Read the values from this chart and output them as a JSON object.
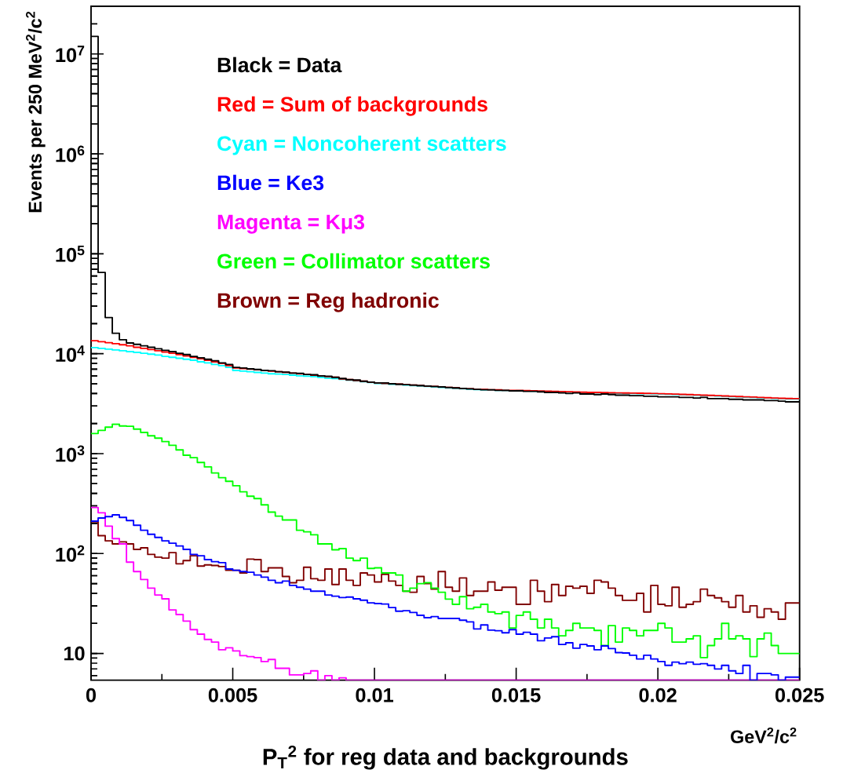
{
  "chart_data": {
    "type": "histogram",
    "title": "P$_{T}$$^{2}$ for reg data and backgrounds",
    "xlabel": "GeV$^{2}$/c$^{2}$",
    "ylabel": "Events per 250 MeV$^{2}$/c$^{2}$",
    "log": "y",
    "legend": "top",
    "xlim": [
      0,
      0.025
    ],
    "ylim": [
      5.4,
      30000000
    ],
    "xticks": [
      0,
      {
        "value": 0.0025,
        "label": null
      },
      0.005,
      {
        "value": 0.0075,
        "label": null
      },
      0.01,
      {
        "value": 0.0125,
        "label": null
      },
      0.015,
      {
        "value": 0.0175,
        "label": null
      },
      0.02,
      {
        "value": 0.0225,
        "label": null
      },
      0.025
    ],
    "yticks": [
      10,
      {
        "value": 100,
        "label": "10$^{2}$"
      },
      {
        "value": 1000,
        "label": "10$^{3}$"
      },
      {
        "value": 10000,
        "label": "10$^{4}$"
      },
      {
        "value": 100000,
        "label": "10$^{5}$"
      },
      {
        "value": 1000000,
        "label": "10$^{6}$"
      },
      {
        "value": 10000000,
        "label": "10$^{7}$"
      },
      {
        "value": 6,
        "label": null
      },
      {
        "value": 7,
        "label": null
      },
      {
        "value": 8,
        "label": null
      },
      {
        "value": 9,
        "label": null
      },
      {
        "value": 20,
        "label": null
      },
      {
        "value": 30,
        "label": null
      },
      {
        "value": 40,
        "label": null
      },
      {
        "value": 50,
        "label": null
      },
      {
        "value": 60,
        "label": null
      },
      {
        "value": 70,
        "label": null
      },
      {
        "value": 80,
        "label": null
      },
      {
        "value": 90,
        "label": null
      },
      {
        "value": 200,
        "label": null
      },
      {
        "value": 300,
        "label": null
      },
      {
        "value": 400,
        "label": null
      },
      {
        "value": 500,
        "label": null
      },
      {
        "value": 600,
        "label": null
      },
      {
        "value": 700,
        "label": null
      },
      {
        "value": 800,
        "label": null
      },
      {
        "value": 900,
        "label": null
      },
      {
        "value": 2000,
        "label": null
      },
      {
        "value": 3000,
        "label": null
      },
      {
        "value": 4000,
        "label": null
      },
      {
        "value": 5000,
        "label": null
      },
      {
        "value": 6000,
        "label": null
      },
      {
        "value": 7000,
        "label": null
      },
      {
        "value": 8000,
        "label": null
      },
      {
        "value": 9000,
        "label": null
      },
      {
        "value": 20000,
        "label": null
      },
      {
        "value": 30000,
        "label": null
      },
      {
        "value": 40000,
        "label": null
      },
      {
        "value": 50000,
        "label": null
      },
      {
        "value": 60000,
        "label": null
      },
      {
        "value": 70000,
        "label": null
      },
      {
        "value": 80000,
        "label": null
      },
      {
        "value": 90000,
        "label": null
      },
      {
        "value": 200000,
        "label": null
      },
      {
        "value": 300000,
        "label": null
      },
      {
        "value": 400000,
        "label": null
      },
      {
        "value": 500000,
        "label": null
      },
      {
        "value": 600000,
        "label": null
      },
      {
        "value": 700000,
        "label": null
      },
      {
        "value": 800000,
        "label": null
      },
      {
        "value": 900000,
        "label": null
      },
      {
        "value": 2000000,
        "label": null
      },
      {
        "value": 3000000,
        "label": null
      },
      {
        "value": 4000000,
        "label": null
      },
      {
        "value": 5000000,
        "label": null
      },
      {
        "value": 6000000,
        "label": null
      },
      {
        "value": 7000000,
        "label": null
      },
      {
        "value": 8000000,
        "label": null
      },
      {
        "value": 9000000,
        "label": null
      },
      {
        "value": 20000000,
        "label": null
      }
    ],
    "bins": [
      0,
      0.00025,
      0.0005,
      0.00075,
      0.001,
      0.00125,
      0.0015,
      0.00175,
      0.002,
      0.00225,
      0.0025,
      0.00275,
      0.003,
      0.00325,
      0.0035,
      0.00375,
      0.004,
      0.00425,
      0.0045,
      0.00475,
      0.005,
      0.00525,
      0.0055,
      0.00575,
      0.006,
      0.00625,
      0.0065,
      0.00675,
      0.007,
      0.00725,
      0.0075,
      0.00775,
      0.008,
      0.00825,
      0.0085,
      0.00875,
      0.009,
      0.00925,
      0.0095,
      0.00975,
      0.01,
      0.01025,
      0.0105,
      0.01075,
      0.011,
      0.01125,
      0.0115,
      0.01175,
      0.012,
      0.01225,
      0.0125,
      0.01275,
      0.013,
      0.01325,
      0.0135,
      0.01375,
      0.014,
      0.01425,
      0.0145,
      0.01475,
      0.015,
      0.01525,
      0.0155,
      0.01575,
      0.016,
      0.01625,
      0.0165,
      0.01675,
      0.017,
      0.01725,
      0.0175,
      0.01775,
      0.018,
      0.01825,
      0.0185,
      0.01875,
      0.019,
      0.01925,
      0.0195,
      0.01975,
      0.02,
      0.02025,
      0.0205,
      0.02075,
      0.021,
      0.02125,
      0.0215,
      0.02175,
      0.022,
      0.02225,
      0.0225,
      0.02275,
      0.023,
      0.02325,
      0.0235,
      0.02375,
      0.024,
      0.02425,
      0.0245,
      0.02475,
      0.025
    ],
    "series": [
      {
        "name": "Brown = Reg hadronic",
        "color": "#800000",
        "values": [
          208,
          151,
          134,
          125,
          131,
          125,
          110,
          114,
          98,
          92,
          90,
          102,
          79,
          85,
          95,
          75,
          77,
          76,
          74,
          68,
          68,
          64,
          88,
          87,
          66,
          72,
          72,
          59,
          51,
          54,
          73,
          56,
          54,
          70,
          49,
          70,
          54,
          48,
          64,
          61,
          52,
          62,
          53,
          48,
          42,
          41,
          59,
          50,
          44,
          66,
          46,
          42,
          57,
          38,
          42,
          42,
          52,
          43,
          46,
          46,
          31,
          31,
          54,
          42,
          33,
          49,
          38,
          47,
          45,
          47,
          40,
          54,
          52,
          45,
          38,
          34,
          34,
          40,
          26,
          48,
          31,
          30,
          46,
          29,
          31,
          33,
          44,
          38,
          36,
          33,
          29,
          38,
          26,
          30,
          23,
          28,
          26,
          22,
          32,
          32
        ]
      },
      {
        "name": "Green = Collimator scatters",
        "color": "#00ff00",
        "values": [
          1590,
          1710,
          1840,
          1970,
          1890,
          1880,
          1760,
          1630,
          1510,
          1430,
          1320,
          1210,
          1090,
          965,
          910,
          815,
          736,
          641,
          575,
          528,
          477,
          415,
          375,
          355,
          307,
          260,
          237,
          217,
          217,
          171,
          165,
          154,
          125,
          125,
          109,
          112,
          90,
          85,
          90,
          71,
          72,
          64,
          64,
          61,
          42,
          45,
          50,
          51,
          45,
          41,
          35,
          31,
          37,
          28,
          29,
          31,
          26,
          25,
          26,
          18,
          24,
          26,
          22,
          18,
          22,
          18,
          15,
          17,
          20,
          18,
          18,
          17,
          12,
          19,
          13,
          18,
          17,
          15,
          17,
          17,
          20,
          18,
          13,
          13,
          14,
          15,
          9.1,
          12,
          14,
          20,
          14,
          15,
          14,
          9.3,
          14,
          16,
          12,
          10,
          10,
          10
        ]
      },
      {
        "name": "Magenta = Kμ3",
        "color": "#ff00ff",
        "values": [
          289,
          256,
          188,
          141,
          125,
          82,
          66,
          55,
          45,
          38.5,
          35.2,
          27.3,
          24.5,
          21.1,
          17.3,
          15.6,
          13.8,
          13.0,
          10.9,
          11.4,
          10.6,
          9.5,
          9.3,
          9.1,
          8.3,
          8.7,
          7.1,
          7.1,
          6.1,
          6.1,
          6.3,
          6.7,
          null,
          6.0,
          null,
          5.7,
          null,
          null,
          null,
          null,
          null,
          null,
          null,
          null,
          null,
          null,
          null,
          null,
          null,
          null,
          null,
          null,
          null,
          null,
          null,
          null,
          null,
          null,
          null,
          null,
          null,
          null,
          null,
          null,
          null,
          null,
          null,
          null,
          null,
          null,
          null,
          null,
          null,
          null,
          null,
          null,
          null,
          null,
          null,
          null,
          null,
          null,
          null,
          null,
          null,
          null,
          null,
          null,
          null,
          null,
          null,
          null,
          null,
          null,
          null,
          null,
          null,
          null,
          null,
          null
        ]
      },
      {
        "name": "Blue = Ke3",
        "color": "#0000ff",
        "values": [
          211,
          227,
          234,
          244,
          230,
          214,
          192,
          171,
          156,
          145,
          134,
          127,
          119,
          110,
          98,
          95,
          87,
          83,
          81,
          70,
          68,
          66,
          65,
          61,
          58,
          54,
          51,
          53,
          48,
          46,
          44,
          42,
          42,
          38.5,
          37.4,
          36.3,
          36.7,
          35.2,
          34.1,
          32.1,
          31.6,
          31.2,
          28.8,
          26.5,
          26.8,
          25.7,
          24.1,
          22.8,
          23.4,
          22.4,
          22.4,
          22.4,
          21.5,
          20.7,
          17.6,
          19.3,
          17.1,
          16.9,
          16.1,
          17.3,
          15.6,
          16.3,
          15.6,
          13.4,
          14.3,
          14.7,
          12.3,
          12.8,
          11.3,
          12.3,
          11.9,
          10.9,
          11.9,
          11.2,
          10.2,
          10.1,
          9.6,
          8.8,
          9.6,
          8.8,
          8.3,
          7.6,
          8.2,
          7.9,
          8.2,
          7.8,
          7.9,
          7.6,
          7.0,
          7.6,
          6.7,
          6.3,
          7.6,
          null,
          6.3,
          6.3,
          6.1,
          null,
          5.8,
          5.8
        ]
      },
      {
        "name": "Cyan = Noncoherent scatters",
        "color": "#00ffff",
        "values": [
          11500,
          11300,
          11100,
          10900,
          10700,
          10500,
          10300,
          10100,
          9900,
          9700,
          9400,
          9200,
          9000,
          8800,
          8600,
          8300,
          8100,
          7800,
          7600,
          7300,
          6800,
          6700,
          6600,
          6500,
          6400,
          6300,
          6250,
          6200,
          6100,
          6000,
          5950,
          5900,
          5800,
          5700,
          5650,
          5550,
          5450,
          5350,
          5250,
          5150,
          5050,
          5000,
          4950,
          4900,
          4850,
          4800,
          4750,
          4700,
          4650,
          4600,
          4550,
          4500,
          4450,
          4400,
          4380,
          4350,
          4320,
          4300,
          4280,
          4260,
          4270,
          4250,
          4230,
          4210,
          4190,
          4170,
          4150,
          4130,
          4110,
          4090,
          4070,
          4070,
          4050,
          4030,
          4020,
          4010,
          4000,
          3990,
          3980,
          3970,
          3950,
          3930,
          3910,
          3890,
          3870,
          3840,
          3820,
          3800,
          3770,
          3750,
          3720,
          3700,
          3670,
          3650,
          3620,
          3600,
          3570,
          3550,
          3530,
          3520
        ]
      },
      {
        "name": "Red = Sum of backgrounds",
        "color": "#ff0000",
        "values": [
          13500,
          13200,
          12900,
          12600,
          12300,
          12000,
          11600,
          11300,
          11000,
          10700,
          10400,
          10100,
          9800,
          9500,
          9200,
          8900,
          8600,
          8300,
          8000,
          7600,
          7200,
          7100,
          7000,
          6900,
          6800,
          6700,
          6600,
          6500,
          6400,
          6300,
          6200,
          6100,
          6000,
          5900,
          5800,
          5600,
          5500,
          5400,
          5300,
          5200,
          5100,
          5050,
          5000,
          4950,
          4900,
          4850,
          4800,
          4750,
          4700,
          4650,
          4600,
          4550,
          4500,
          4450,
          4400,
          4400,
          4350,
          4350,
          4300,
          4300,
          4300,
          4280,
          4260,
          4240,
          4220,
          4200,
          4180,
          4160,
          4140,
          4120,
          4100,
          4100,
          4080,
          4060,
          4050,
          4040,
          4030,
          4020,
          4010,
          4000,
          3980,
          3960,
          3940,
          3920,
          3900,
          3870,
          3850,
          3830,
          3800,
          3780,
          3750,
          3730,
          3700,
          3680,
          3650,
          3630,
          3600,
          3580,
          3560,
          3550
        ]
      },
      {
        "name": "Black = Data",
        "color": "#000000",
        "values": [
          15000000,
          65000,
          23000,
          16000,
          13800,
          12800,
          12400,
          12000,
          11600,
          11200,
          10800,
          10500,
          10100,
          9800,
          9400,
          9100,
          8800,
          8500,
          8100,
          7800,
          7300,
          7200,
          7050,
          6950,
          6800,
          6750,
          6600,
          6550,
          6400,
          6350,
          6200,
          6150,
          6000,
          5950,
          5800,
          5650,
          5500,
          5450,
          5300,
          5200,
          5100,
          5100,
          5000,
          4950,
          4900,
          4850,
          4800,
          4750,
          4700,
          4650,
          4600,
          4550,
          4500,
          4450,
          4400,
          4350,
          4350,
          4300,
          4300,
          4250,
          4250,
          4200,
          4200,
          4150,
          4100,
          4100,
          4050,
          4000,
          4050,
          3950,
          3950,
          3900,
          3950,
          3900,
          3850,
          3850,
          3800,
          3800,
          3750,
          3750,
          3700,
          3700,
          3700,
          3650,
          3650,
          3600,
          3650,
          3550,
          3550,
          3550,
          3500,
          3500,
          3450,
          3450,
          3450,
          3400,
          3400,
          3350,
          3300,
          3300
        ]
      }
    ]
  }
}
